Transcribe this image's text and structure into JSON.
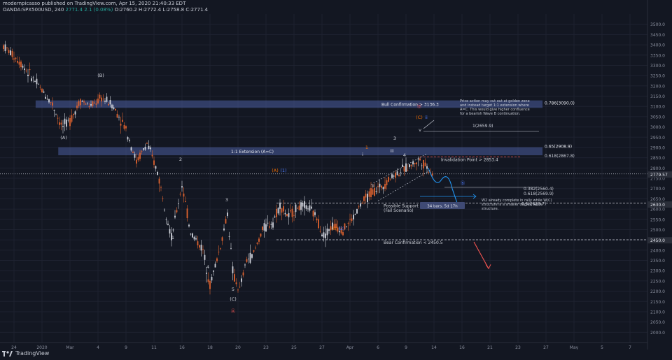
{
  "header": {
    "publisher_line": "modernpicasso published on TradingView.com, Apr 15, 2020 21:40:33 EDT",
    "symbol": "OANDA:SPX500USD, 240",
    "last": "2771.4",
    "change": "2.1 (0.08%)",
    "ohlc": "O:2760.2 H:2772.4 L:2758.8 C:2771.4"
  },
  "brand": {
    "label": "TradingView"
  },
  "chart_data": {
    "type": "candlestick",
    "ylim": [
      1950,
      3550
    ],
    "price_ticks": [
      "3500.0",
      "3450.0",
      "3400.0",
      "3350.0",
      "3300.0",
      "3250.0",
      "3200.0",
      "3150.0",
      "3100.0",
      "3050.0",
      "3000.0",
      "2950.0",
      "2900.0",
      "2850.0",
      "2800.0",
      "2750.0",
      "2700.0",
      "2650.0",
      "2600.0",
      "2550.0",
      "2500.0",
      "2450.0",
      "2400.0",
      "2350.0",
      "2300.0",
      "2250.0",
      "2200.0",
      "2150.0",
      "2100.0",
      "2050.0",
      "2000.0"
    ],
    "time_ticks": [
      "24",
      "2020",
      "Mar",
      "4",
      "9",
      "11",
      "16",
      "18",
      "20",
      "23",
      "25",
      "27",
      "Apr",
      "6",
      "9",
      "14",
      "16",
      "21",
      "23",
      "27",
      "May",
      "5",
      "7"
    ],
    "current_price": "2771.4",
    "badges": [
      {
        "label": "2779.57",
        "price": 2768,
        "color": "#2a2e39"
      },
      {
        "label": "2630.0",
        "price": 2622,
        "color": "#2a2e39"
      },
      {
        "label": "2450.0",
        "price": 2448,
        "color": "#2a2e39"
      }
    ],
    "zones": [
      {
        "label": "Bull Confirmation > 3136.3",
        "right_label": "0.786(3090.0)",
        "top": 3129,
        "bottom": 3093,
        "from": 0.055
      },
      {
        "label": "1:1 Extension (A=C)",
        "right_label": "0.65(2908.9)",
        "right_label2": "0.618(2867.8)",
        "top": 2901,
        "bottom": 2862,
        "from": 0.09
      }
    ],
    "levels": [
      {
        "label": "Invalidation Point > 2853.4",
        "price": 2853.4,
        "color": "#ef5350"
      },
      {
        "label": "Possible Support Level\n(Fail Scenario)",
        "right_label": "0.5(2629.7)",
        "price": 2629.7,
        "color": "#d1d4dc"
      },
      {
        "label": "Bear Confirmation < 2450.5",
        "price": 2450.5,
        "color": "#d1d4dc"
      }
    ],
    "fib_labels": [
      "1(2659.9)",
      "0.382(2560.4)",
      "0.5(2629.7)",
      "0.618(2569.9)"
    ],
    "notes": [
      "Price action may cut out at golden zone and instead target 1:1 extension where A=C. This would give higher confluence for a bearish Wave B continuation.",
      "W2 already complete in rally while W(C) structure is a smaller degree wave structure."
    ],
    "wave_labels": [
      "(B)",
      "(A)",
      "2",
      "1",
      "3",
      "4",
      "5",
      "(C)",
      "Ⓐ",
      "(A)",
      "(1)",
      "(B)",
      "(2)",
      "Ⓑ",
      "(C)",
      "1",
      "3",
      "4",
      "i",
      "ii",
      "iii",
      "v",
      "ii",
      "Ⓑ"
    ],
    "measure_label": "34 bars, 5d 17h"
  },
  "colors": {
    "bg": "#131722",
    "up": "#d1d4dc",
    "down": "#e0632f",
    "zone": "#4a5d9e",
    "projection_blue": "#2196f3",
    "projection_red": "#ef5350"
  }
}
